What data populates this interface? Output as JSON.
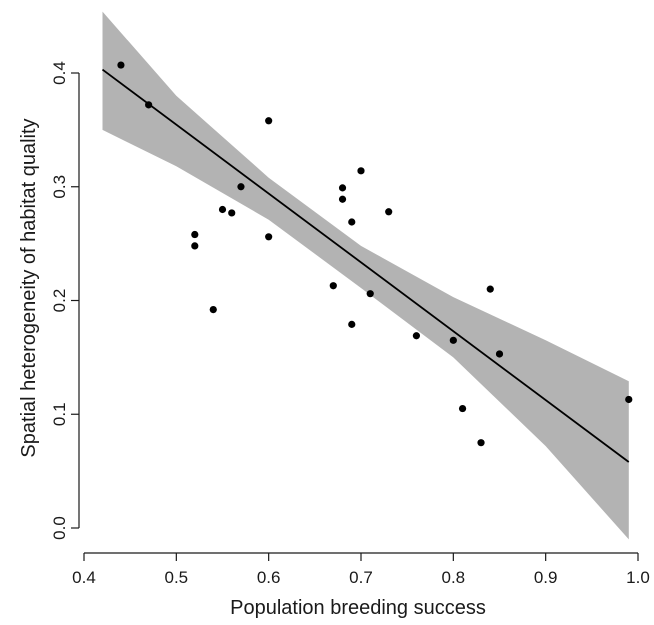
{
  "chart_data": {
    "type": "scatter",
    "xlabel": "Population breeding success",
    "ylabel": "Spatial heterogeneity of habitat quality",
    "xlim": [
      0.4,
      1.0
    ],
    "ylim": [
      0.0,
      0.4
    ],
    "x_ticks": [
      0.4,
      0.5,
      0.6,
      0.7,
      0.8,
      0.9,
      1.0
    ],
    "x_tick_labels": [
      "0.4",
      "0.5",
      "0.6",
      "0.7",
      "0.8",
      "0.9",
      "1.0"
    ],
    "y_ticks": [
      0.0,
      0.1,
      0.2,
      0.3,
      0.4
    ],
    "y_tick_labels": [
      "0.0",
      "0.1",
      "0.2",
      "0.3",
      "0.4"
    ],
    "grid": false,
    "legend": "none",
    "colors": {
      "points": "#000000",
      "fit_line": "#000000",
      "confidence_band": "#b3b3b3"
    },
    "points": [
      {
        "x": 0.44,
        "y": 0.407
      },
      {
        "x": 0.47,
        "y": 0.372
      },
      {
        "x": 0.52,
        "y": 0.258
      },
      {
        "x": 0.52,
        "y": 0.248
      },
      {
        "x": 0.54,
        "y": 0.192
      },
      {
        "x": 0.55,
        "y": 0.28
      },
      {
        "x": 0.56,
        "y": 0.277
      },
      {
        "x": 0.57,
        "y": 0.3
      },
      {
        "x": 0.6,
        "y": 0.358
      },
      {
        "x": 0.6,
        "y": 0.256
      },
      {
        "x": 0.67,
        "y": 0.213
      },
      {
        "x": 0.68,
        "y": 0.299
      },
      {
        "x": 0.68,
        "y": 0.289
      },
      {
        "x": 0.69,
        "y": 0.269
      },
      {
        "x": 0.69,
        "y": 0.179
      },
      {
        "x": 0.7,
        "y": 0.314
      },
      {
        "x": 0.71,
        "y": 0.206
      },
      {
        "x": 0.73,
        "y": 0.278
      },
      {
        "x": 0.76,
        "y": 0.169
      },
      {
        "x": 0.8,
        "y": 0.165
      },
      {
        "x": 0.81,
        "y": 0.105
      },
      {
        "x": 0.83,
        "y": 0.075
      },
      {
        "x": 0.84,
        "y": 0.21
      },
      {
        "x": 0.85,
        "y": 0.153
      },
      {
        "x": 0.99,
        "y": 0.113
      }
    ],
    "fit_line": {
      "x": [
        0.42,
        0.99
      ],
      "y": [
        0.403,
        0.058
      ]
    },
    "confidence_band": {
      "x": [
        0.42,
        0.5,
        0.6,
        0.7,
        0.8,
        0.9,
        0.99
      ],
      "upper": [
        0.454,
        0.38,
        0.308,
        0.248,
        0.203,
        0.165,
        0.129
      ],
      "lower": [
        0.35,
        0.318,
        0.271,
        0.211,
        0.15,
        0.072,
        -0.01
      ]
    }
  }
}
